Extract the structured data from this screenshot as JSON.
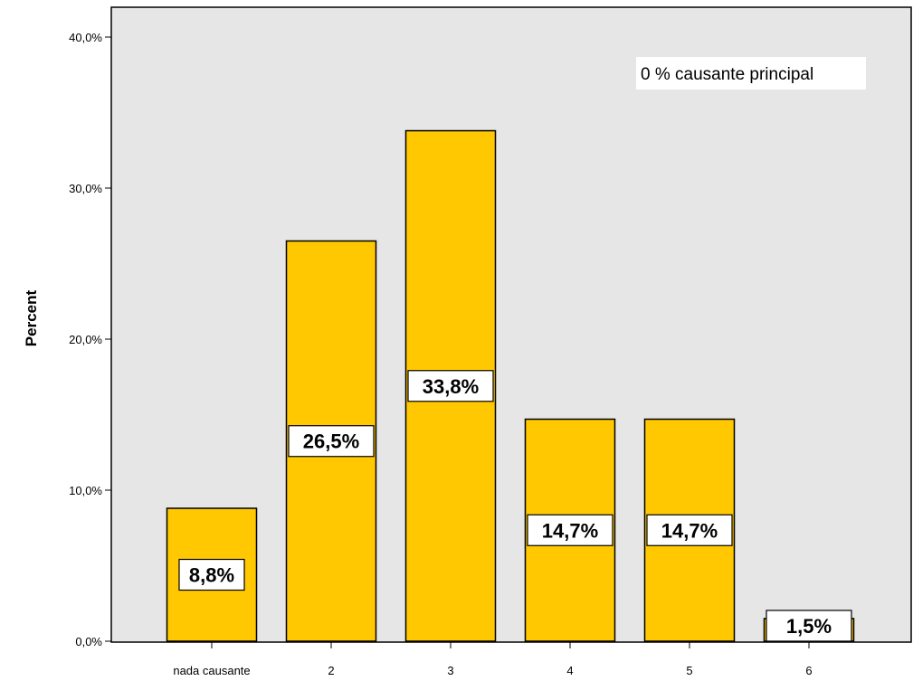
{
  "chart_data": {
    "type": "bar",
    "categories": [
      "nada causante",
      "2",
      "3",
      "4",
      "5",
      "6"
    ],
    "values": [
      8.8,
      26.5,
      33.8,
      14.7,
      14.7,
      1.5
    ],
    "data_labels": [
      "8,8%",
      "26,5%",
      "33,8%",
      "14,7%",
      "14,7%",
      "1,5%"
    ],
    "ylabel": "Percent",
    "xlabel": "",
    "ylim": [
      0,
      40
    ],
    "y_ticks": [
      0,
      10,
      20,
      30,
      40
    ],
    "y_tick_labels": [
      "0,0%",
      "10,0%",
      "20,0%",
      "30,0%",
      "40,0%"
    ],
    "annotation": "0 % causante principal",
    "grid": false,
    "colors": {
      "bar_fill": "#FFC800",
      "bar_stroke": "#000000",
      "plot_background": "#E6E6E6",
      "label_box": "#FFFFFF"
    }
  }
}
